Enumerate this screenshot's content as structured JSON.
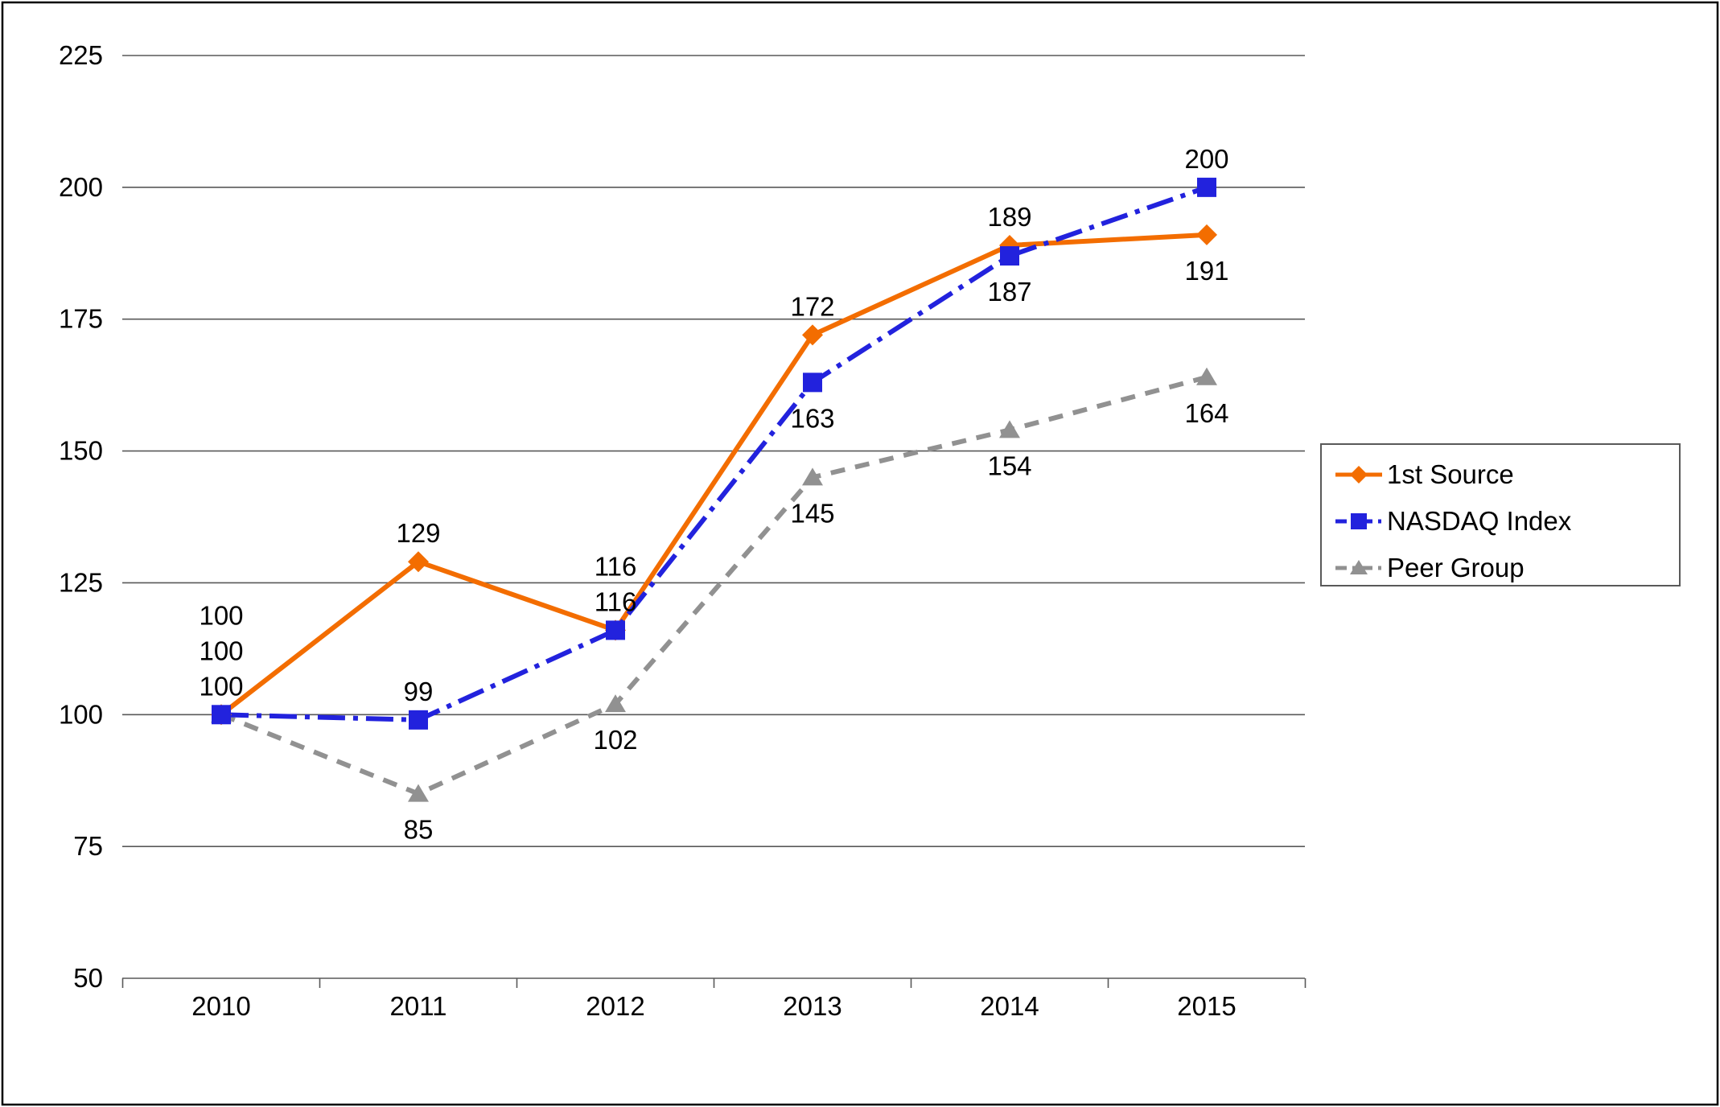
{
  "figure": {
    "background": "#FFFFFF",
    "border_color": "#000000",
    "grid_color": "#595959",
    "text_color": "#000000"
  },
  "chart_data": {
    "type": "line",
    "title": "",
    "xlabel": "",
    "ylabel": "",
    "categories": [
      "2010",
      "2011",
      "2012",
      "2013",
      "2014",
      "2015"
    ],
    "series": [
      {
        "name": "1st Source",
        "color": "#F36D00",
        "marker": "diamond",
        "line_style": "solid",
        "values": [
          100,
          129,
          116,
          172,
          189,
          191
        ],
        "label_pos": [
          "a3",
          "a1",
          "a2",
          "a1",
          "a1",
          "b"
        ]
      },
      {
        "name": "NASDAQ Index",
        "color": "#2222DD",
        "marker": "square",
        "line_style": "dashdot",
        "values": [
          100,
          99,
          116,
          163,
          187,
          200
        ],
        "label_pos": [
          "a2",
          "a1",
          "a1",
          "b",
          "b",
          "a1"
        ]
      },
      {
        "name": "Peer Group",
        "color": "#919191",
        "marker": "triangle",
        "line_style": "dashed",
        "values": [
          100,
          85,
          102,
          145,
          154,
          164
        ],
        "label_pos": [
          "a1",
          "b",
          "b",
          "b",
          "b",
          "b"
        ]
      }
    ],
    "ylim": [
      50,
      225
    ],
    "yticks": [
      50,
      75,
      100,
      125,
      150,
      175,
      200,
      225
    ],
    "grid": true,
    "legend_position": "right",
    "legend_labels": [
      "1st Source",
      "NASDAQ Index",
      "Peer Group"
    ]
  }
}
